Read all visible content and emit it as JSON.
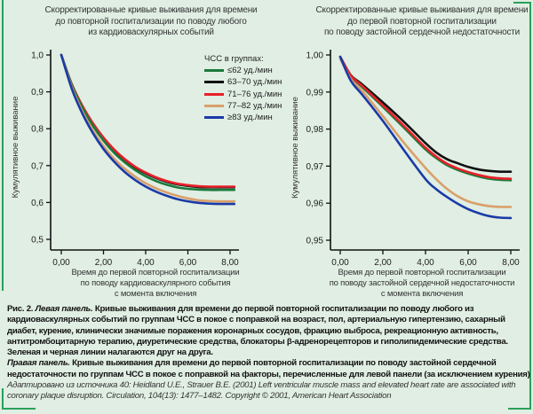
{
  "frame": {
    "accent_color": "#2aa05a",
    "background": "#e0eee3"
  },
  "legend": {
    "title": "ЧСС в группах:",
    "items": [
      {
        "label": "≤62 уд./мин",
        "color": "#1a7a3a"
      },
      {
        "label": "63–70 уд./мин",
        "color": "#111111"
      },
      {
        "label": "71–76 уд./мин",
        "color": "#e8202a"
      },
      {
        "label": "77–82 уд./мин",
        "color": "#d9a06a"
      },
      {
        "label": "≥83 уд./мин",
        "color": "#1a3aa8"
      }
    ]
  },
  "chart_data": [
    {
      "type": "line",
      "title": [
        "Скорректированные кривые выживания для времени",
        "до повторной госпитализации по поводу любого",
        "из кардиоваскулярных событий"
      ],
      "xlabel": [
        "Время до первой повторной госпитализации",
        "по поводу кардиоваскулярного события",
        "с момента включения"
      ],
      "ylabel": "Кумулятивное выживание",
      "xlim": [
        0,
        8.2
      ],
      "ylim": [
        0.5,
        1.0
      ],
      "xticks": [
        0,
        2,
        4,
        6,
        8
      ],
      "xtick_labels": [
        "0,00",
        "2,00",
        "4,00",
        "6,00",
        "8,00"
      ],
      "yticks": [
        0.5,
        0.6,
        0.7,
        0.8,
        0.9,
        1.0
      ],
      "ytick_labels": [
        "0,5",
        "0,6",
        "0,7",
        "0,8",
        "0,9",
        "1,0"
      ],
      "x": [
        0,
        0.5,
        1,
        1.5,
        2,
        2.5,
        3,
        3.5,
        4,
        4.5,
        5,
        5.5,
        6,
        6.5,
        7,
        7.5,
        8,
        8.2
      ],
      "series": [
        {
          "name": "63–70 уд./мин",
          "color": "#111111",
          "values": [
            1.0,
            0.92,
            0.861,
            0.813,
            0.774,
            0.742,
            0.716,
            0.695,
            0.679,
            0.666,
            0.656,
            0.649,
            0.645,
            0.642,
            0.641,
            0.641,
            0.641,
            0.641
          ]
        },
        {
          "name": "71–76 уд./мин",
          "color": "#e8202a",
          "values": [
            1.0,
            0.92,
            0.862,
            0.815,
            0.776,
            0.744,
            0.718,
            0.697,
            0.681,
            0.668,
            0.658,
            0.651,
            0.647,
            0.644,
            0.643,
            0.643,
            0.643,
            0.643
          ]
        },
        {
          "name": "≤62 уд./мин",
          "color": "#1a7a3a",
          "values": [
            1.0,
            0.918,
            0.857,
            0.808,
            0.768,
            0.735,
            0.709,
            0.688,
            0.671,
            0.658,
            0.648,
            0.641,
            0.637,
            0.635,
            0.634,
            0.634,
            0.634,
            0.634
          ]
        },
        {
          "name": "77–82 уд./мин",
          "color": "#d9a06a",
          "values": [
            1.0,
            0.912,
            0.847,
            0.795,
            0.753,
            0.719,
            0.692,
            0.67,
            0.652,
            0.638,
            0.627,
            0.618,
            0.611,
            0.606,
            0.604,
            0.603,
            0.603,
            0.603
          ]
        },
        {
          "name": "≥83 уд./мин",
          "color": "#1a3aa8",
          "values": [
            1.0,
            0.908,
            0.841,
            0.788,
            0.745,
            0.711,
            0.683,
            0.661,
            0.643,
            0.629,
            0.618,
            0.609,
            0.603,
            0.599,
            0.597,
            0.596,
            0.596,
            0.596
          ]
        }
      ]
    },
    {
      "type": "line",
      "title": [
        "Скорректированные кривые выживания для времени",
        "до первой повторной госпитализации",
        "по поводу застойной сердечной недостаточности"
      ],
      "xlabel": [
        "Время до первой повторной госпитализации",
        "по поводу застойной сердечной недостаточности",
        "с момента включения"
      ],
      "ylabel": "Кумулятивное выживание",
      "xlim": [
        0,
        8.2
      ],
      "ylim": [
        0.95,
        1.0
      ],
      "xticks": [
        0,
        2,
        4,
        6,
        8
      ],
      "xtick_labels": [
        "0,00",
        "2,00",
        "4,00",
        "6,00",
        "8,00"
      ],
      "yticks": [
        0.95,
        0.96,
        0.97,
        0.98,
        0.99,
        1.0
      ],
      "ytick_labels": [
        "0,95",
        "0,96",
        "0,97",
        "0,98",
        "0,99",
        "1,00"
      ],
      "x": [
        0,
        0.5,
        1,
        2,
        3,
        4,
        4.5,
        5,
        5.5,
        6,
        6.5,
        7,
        7.5,
        8
      ],
      "series": [
        {
          "name": "63–70 уд./мин",
          "color": "#111111",
          "values": [
            0.9995,
            0.9945,
            0.9922,
            0.9872,
            0.9819,
            0.9762,
            0.9737,
            0.9719,
            0.9708,
            0.9698,
            0.9691,
            0.9687,
            0.9685,
            0.9685
          ]
        },
        {
          "name": "≤62 уд./мин",
          "color": "#1a7a3a",
          "values": [
            0.9995,
            0.9942,
            0.9915,
            0.986,
            0.9803,
            0.9745,
            0.9722,
            0.9703,
            0.969,
            0.968,
            0.9672,
            0.9666,
            0.9663,
            0.9662
          ]
        },
        {
          "name": "71–76 уд./мин",
          "color": "#e8202a",
          "values": [
            0.9995,
            0.9944,
            0.9918,
            0.9864,
            0.9808,
            0.975,
            0.9726,
            0.9707,
            0.9694,
            0.9684,
            0.9676,
            0.967,
            0.9667,
            0.9666
          ]
        },
        {
          "name": "77–82 уд./мин",
          "color": "#d9a06a",
          "values": [
            0.999,
            0.9935,
            0.9905,
            0.9835,
            0.9762,
            0.9695,
            0.9665,
            0.9639,
            0.9619,
            0.9605,
            0.9597,
            0.9592,
            0.959,
            0.959
          ]
        },
        {
          "name": "≥83 уд./мин",
          "color": "#1a3aa8",
          "values": [
            0.9995,
            0.993,
            0.9895,
            0.9822,
            0.9742,
            0.9665,
            0.9638,
            0.9617,
            0.9599,
            0.9584,
            0.9573,
            0.9565,
            0.9561,
            0.956
          ]
        }
      ]
    }
  ],
  "caption": {
    "fig_label": "Рис. 2.",
    "left_label": "Левая панель.",
    "left_text": "Кривые выживания для времени до первой повторной госпитализации по поводу любого из кардиоваскуляр­ных событий по группам ЧСС в покое с поправкой на возраст, пол, артериальную гипертензию, сахарный диабет, курение, клинически значимые поражения коронарных сосудов, фракцию выброса, рекреационную активность, антитромбоцитарную терапию, диуретические средства, блокаторы β-адренорецепторов и гиполипидемические средства. Зеленая и черная линии налагаются друг на друга.",
    "right_label": "Правая панель.",
    "right_text": "Кривые выживания для времени до первой повторной госпитализации по поводу застойной сердечной недостаточ­ности по группам ЧСС в покое с поправкой на факторы, перечисленные для левой панели (за исключением курения)",
    "source": "Адаптировано из источника 40: Heidland U.E., Strauer B.E. (2001) Left ventricular muscle mass and elevated heart rate are associated with coronary plaque disruption. Circulation, 104(13): 1477–1482. Copyright © 2001, American Heart Association"
  }
}
